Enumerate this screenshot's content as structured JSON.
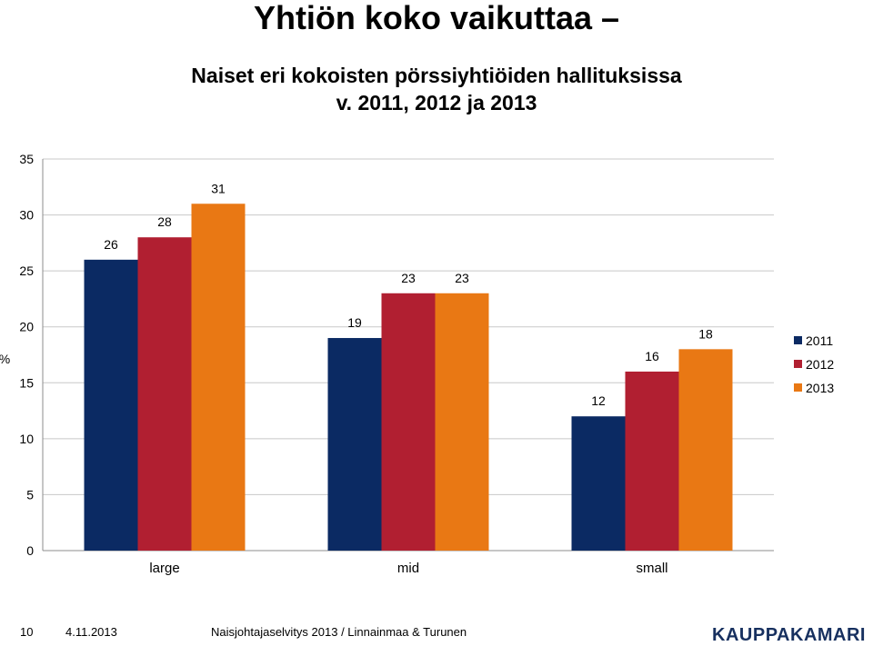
{
  "header": {
    "title": "Yhtiön koko vaikuttaa –",
    "subtitle_line1": "Naiset eri kokoisten pörssiyhtiöiden hallituksissa",
    "subtitle_line2": "v. 2011, 2012 ja 2013"
  },
  "chart_data": {
    "type": "bar",
    "categories": [
      "large",
      "mid",
      "small"
    ],
    "series": [
      {
        "name": "2011",
        "color": "#0b2a63",
        "values": [
          26,
          19,
          12
        ]
      },
      {
        "name": "2012",
        "color": "#b11f31",
        "values": [
          28,
          23,
          16
        ]
      },
      {
        "name": "2013",
        "color": "#e97814",
        "values": [
          31,
          23,
          18
        ]
      }
    ],
    "ylabel": "%",
    "ylim": [
      0,
      35
    ],
    "yticks": [
      0,
      5,
      10,
      15,
      20,
      25,
      30,
      35
    ],
    "grid": true,
    "legend": "right"
  },
  "footer": {
    "page_number": "10",
    "date": "4.11.2013",
    "source": "Naisjohtajaselvitys 2013 / Linnainmaa & Turunen",
    "logo_text": "KAUPPAKAMARI"
  }
}
